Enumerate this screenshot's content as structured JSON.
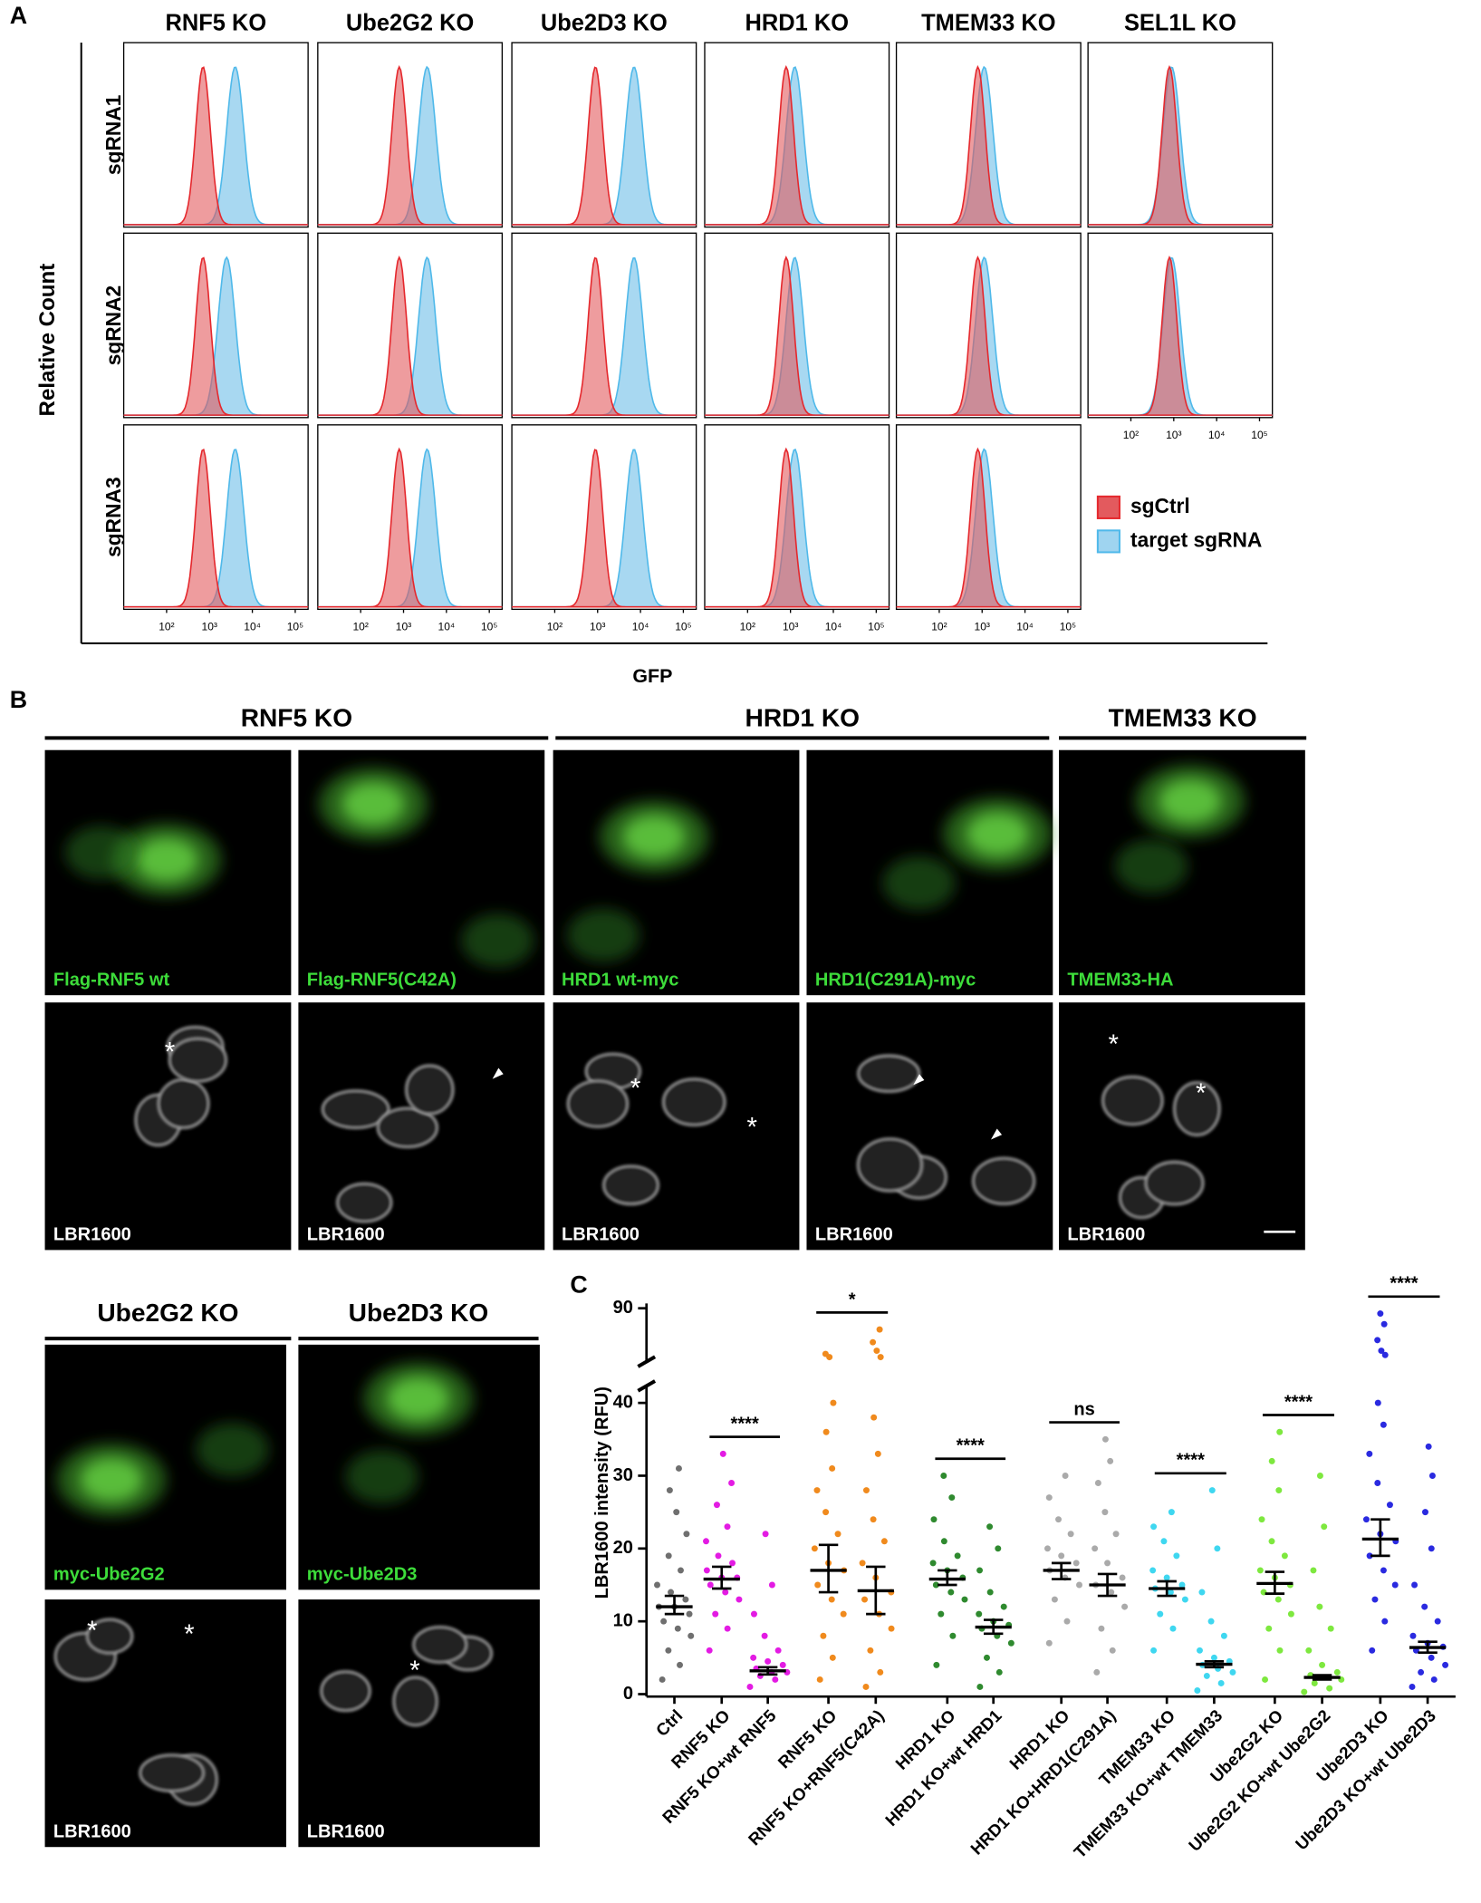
{
  "panel_a": {
    "label": "A",
    "columns": [
      "RNF5 KO",
      "Ube2G2 KO",
      "Ube2D3 KO",
      "HRD1 KO",
      "TMEM33 KO",
      "SEL1L KO"
    ],
    "rows": [
      "sgRNA1",
      "sgRNA2",
      "sgRNA3"
    ],
    "y_label": "Relative Count",
    "x_label": "GFP",
    "xlim": [
      1,
      5.3
    ],
    "xticks": [
      {
        "value": 2,
        "label": "10²"
      },
      {
        "value": 3,
        "label": "10³"
      },
      {
        "value": 4,
        "label": "10⁴"
      },
      {
        "value": 5,
        "label": "10⁵"
      }
    ],
    "legend": [
      {
        "name": "sgCtrl",
        "color": "#e5282d"
      },
      {
        "name": "target sgRNA",
        "color": "#4fb9ea"
      }
    ],
    "peaks": [
      [
        [
          2.85,
          3.6
        ],
        [
          2.85,
          3.4
        ],
        [
          2.85,
          3.6
        ]
      ],
      [
        [
          2.9,
          3.55
        ],
        [
          2.9,
          3.55
        ],
        [
          2.9,
          3.55
        ]
      ],
      [
        [
          2.95,
          3.85
        ],
        [
          2.95,
          3.85
        ],
        [
          2.95,
          3.85
        ]
      ],
      [
        [
          2.9,
          3.1
        ],
        [
          2.9,
          3.1
        ],
        [
          2.9,
          3.1
        ]
      ],
      [
        [
          2.9,
          3.05
        ],
        [
          2.9,
          3.05
        ],
        [
          2.9,
          3.05
        ]
      ],
      [
        [
          2.9,
          2.95
        ],
        [
          2.9,
          2.95
        ]
      ]
    ]
  },
  "panel_b": {
    "label": "B",
    "counterstain": "LBR1600",
    "marker": "*",
    "groups": [
      {
        "title": "RNF5 KO",
        "stains": [
          "Flag-RNF5 wt",
          "Flag-RNF5(C42A)"
        ]
      },
      {
        "title": "HRD1 KO",
        "stains": [
          "HRD1 wt-myc",
          "HRD1(C291A)-myc"
        ]
      },
      {
        "title": "TMEM33 KO",
        "stains": [
          "TMEM33-HA"
        ]
      },
      {
        "title": "Ube2G2 KO",
        "stains": [
          "myc-Ube2G2"
        ]
      },
      {
        "title": "Ube2D3 KO",
        "stains": [
          "myc-Ube2D3"
        ]
      }
    ]
  },
  "chart_data": {
    "type": "dot",
    "panel_label": "C",
    "y_label": "LBR1600 intensity (RFU)",
    "ylim": [
      0,
      90
    ],
    "ybreak": 42,
    "yticks": [
      0,
      10,
      20,
      30,
      40,
      90
    ],
    "categories": [
      "Ctrl",
      "RNF5 KO",
      "RNF5 KO+wt RNF5",
      "RNF5 KO",
      "RNF5 KO+RNF5(C42A)",
      "HRD1 KO",
      "HRD1 KO+wt HRD1",
      "HRD1 KO",
      "HRD1 KO+HRD1(C291A)",
      "TMEM33 KO",
      "TMEM33 KO+wt TMEM33",
      "Ube2G2 KO",
      "Ube2G2 KO+wt Ube2G2",
      "Ube2D3 KO",
      "Ube2D3 KO+wt Ube2D3"
    ],
    "groups": [
      {
        "color": "#6f6f6f",
        "median": 12,
        "ci": [
          11,
          13.5
        ],
        "points": [
          2,
          4,
          6,
          8,
          9,
          10,
          11,
          12,
          12,
          13,
          14,
          15,
          17,
          19,
          22,
          25,
          28,
          31
        ]
      },
      {
        "color": "#e31be3",
        "median": 15.8,
        "ci": [
          14.5,
          17.5
        ],
        "points": [
          6,
          9,
          11,
          13,
          14,
          15,
          16,
          16,
          17,
          18,
          19,
          21,
          23,
          26,
          29,
          33
        ]
      },
      {
        "color": "#e31be3",
        "median": 3.2,
        "ci": [
          2.7,
          3.7
        ],
        "points": [
          1,
          2,
          2.5,
          3,
          3,
          3.5,
          4,
          4.5,
          5,
          6,
          8,
          11,
          15,
          22
        ]
      },
      {
        "color": "#f08a1d",
        "median": 17,
        "ci": [
          14,
          20.5
        ],
        "points": [
          2,
          5,
          8,
          11,
          13,
          15,
          17,
          18,
          20,
          22,
          25,
          28,
          31,
          36,
          40,
          44,
          47
        ]
      },
      {
        "color": "#f08a1d",
        "median": 14.2,
        "ci": [
          11,
          17.5
        ],
        "points": [
          1,
          3,
          6,
          9,
          11,
          13,
          14,
          16,
          18,
          21,
          24,
          28,
          33,
          38,
          44,
          50,
          58,
          70
        ]
      },
      {
        "color": "#2f8a2f",
        "median": 15.8,
        "ci": [
          15,
          17
        ],
        "points": [
          4,
          8,
          11,
          13,
          14,
          15,
          16,
          17,
          18,
          19,
          21,
          24,
          27,
          30
        ]
      },
      {
        "color": "#2f8a2f",
        "median": 9.2,
        "ci": [
          8.3,
          10.2
        ],
        "points": [
          1,
          3,
          5,
          7,
          8,
          9,
          9.5,
          10,
          11,
          12,
          14,
          17,
          20,
          23
        ]
      },
      {
        "color": "#aaaaaa",
        "median": 17,
        "ci": [
          15.8,
          18
        ],
        "points": [
          7,
          10,
          13,
          15,
          16,
          17,
          18,
          19,
          20,
          22,
          24,
          27,
          30
        ]
      },
      {
        "color": "#aaaaaa",
        "median": 15,
        "ci": [
          13.5,
          16.5
        ],
        "points": [
          3,
          6,
          9,
          12,
          14,
          15,
          16,
          18,
          20,
          22,
          25,
          29,
          32,
          35
        ]
      },
      {
        "color": "#3fd7f0",
        "median": 14.5,
        "ci": [
          13.5,
          15.5
        ],
        "points": [
          6,
          9,
          11,
          13,
          14,
          14.5,
          15,
          16,
          17,
          19,
          21,
          23,
          25
        ]
      },
      {
        "color": "#3fd7f0",
        "median": 4.1,
        "ci": [
          3.7,
          4.5
        ],
        "points": [
          0.5,
          1.5,
          2.5,
          3,
          3.5,
          4,
          4.5,
          5,
          6,
          8,
          10,
          14,
          20,
          28
        ]
      },
      {
        "color": "#7ee83f",
        "median": 15.2,
        "ci": [
          13.8,
          16.8
        ],
        "points": [
          2,
          6,
          9,
          11,
          13,
          14,
          15,
          16,
          17,
          19,
          21,
          24,
          28,
          32,
          36
        ]
      },
      {
        "color": "#7ee83f",
        "median": 2.3,
        "ci": [
          2,
          2.6
        ],
        "points": [
          0.3,
          0.8,
          1.5,
          2,
          2.3,
          2.6,
          3,
          4,
          6,
          9,
          12,
          17,
          23,
          30
        ]
      },
      {
        "color": "#2a2ae0",
        "median": 21.3,
        "ci": [
          19,
          24
        ],
        "points": [
          6,
          10,
          13,
          15,
          17,
          19,
          21,
          22,
          24,
          26,
          29,
          33,
          37,
          40,
          46,
          50,
          60,
          75,
          85
        ]
      },
      {
        "color": "#2a2ae0",
        "median": 6.4,
        "ci": [
          5.7,
          7.2
        ],
        "points": [
          1,
          2,
          3,
          4,
          5,
          6,
          6.5,
          7,
          8,
          10,
          12,
          15,
          20,
          25,
          30,
          34
        ]
      }
    ],
    "comparisons": [
      {
        "groups": [
          1,
          2
        ],
        "label": "****"
      },
      {
        "groups": [
          3,
          4
        ],
        "label": "*"
      },
      {
        "groups": [
          5,
          6
        ],
        "label": "****"
      },
      {
        "groups": [
          7,
          8
        ],
        "label": "ns"
      },
      {
        "groups": [
          9,
          10
        ],
        "label": "****"
      },
      {
        "groups": [
          11,
          12
        ],
        "label": "****"
      },
      {
        "groups": [
          13,
          14
        ],
        "label": "****"
      }
    ]
  }
}
